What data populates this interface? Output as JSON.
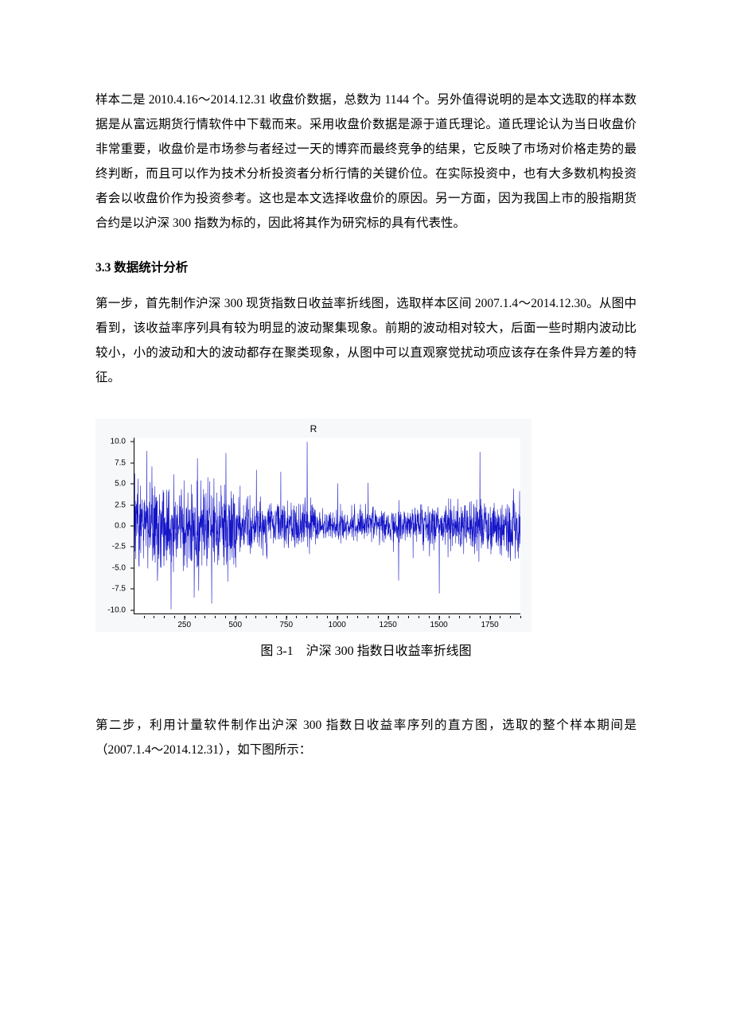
{
  "para1": "样本二是 2010.4.16～2014.12.31 收盘价数据，总数为 1144 个。另外值得说明的是本文选取的样本数据是从富远期货行情软件中下载而来。采用收盘价数据是源于道氏理论。道氏理论认为当日收盘价非常重要，收盘价是市场参与者经过一天的博弈而最终竞争的结果，它反映了市场对价格走势的最终判断，而且可以作为技术分析投资者分析行情的关键价位。在实际投资中，也有大多数机构投资者会以收盘价作为投资参考。这也是本文选择收盘价的原因。另一方面，因为我国上市的股指期货合约是以沪深 300 指数为标的，因此将其作为研究标的具有代表性。",
  "heading": "3.3 数据统计分析",
  "para2": "第一步，首先制作沪深 300 现货指数日收益率折线图，选取样本区间 2007.1.4～2014.12.30。从图中看到，该收益率序列具有较为明显的波动聚集现象。前期的波动相对较大，后面一些时期内波动比较小，小的波动和大的波动都存在聚类现象，从图中可以直观察觉扰动项应该存在条件异方差的特征。",
  "figcaption": "图 3-1　沪深 300 指数日收益率折线图",
  "para3": "第二步，利用计量软件制作出沪深 300 指数日收益率序列的直方图，选取的整个样本期间是（2007.1.4～2014.12.31），如下图所示：",
  "chart": {
    "type": "line",
    "title": "R",
    "title_fontsize": 12,
    "series_color": "#1414c8",
    "line_width": 0.6,
    "background_color": "#ffffff",
    "panel_color": "#f7f8fa",
    "axis_color": "#000000",
    "tick_fontsize": 10,
    "xlim": [
      1,
      1900
    ],
    "ylim": [
      -10.5,
      10.5
    ],
    "yticks": [
      -10.0,
      -7.5,
      -5.0,
      -2.5,
      0.0,
      2.5,
      5.0,
      7.5,
      10.0
    ],
    "ytick_labels": [
      "-10.0",
      "-7.5",
      "-5.0",
      "-2.5",
      "0.0",
      "2.5",
      "5.0",
      "7.5",
      "10.0"
    ],
    "xticks": [
      250,
      500,
      750,
      1000,
      1250,
      1500,
      1750
    ],
    "xtick_labels": [
      "250",
      "500",
      "750",
      "1000",
      "1250",
      "1500",
      "1750"
    ],
    "n_points": 1900,
    "seed": 20070104,
    "vol_segments": [
      {
        "end": 500,
        "sigma": 2.6
      },
      {
        "end": 900,
        "sigma": 1.5
      },
      {
        "end": 1300,
        "sigma": 1.0
      },
      {
        "end": 1600,
        "sigma": 1.3
      },
      {
        "end": 1900,
        "sigma": 1.6
      }
    ],
    "shock_indices": [
      60,
      120,
      180,
      240,
      310,
      380,
      450,
      520,
      600,
      720,
      850,
      1000,
      1150,
      1300,
      1500,
      1700,
      1850
    ],
    "shock_magnitude": 7.5
  }
}
